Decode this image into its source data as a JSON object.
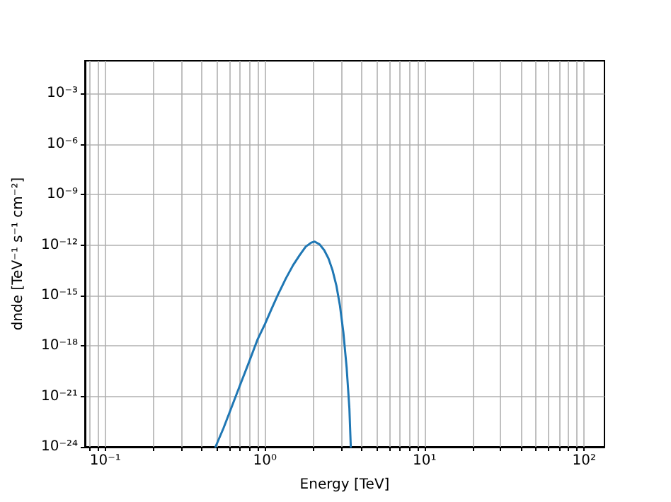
{
  "chart_data": {
    "type": "line",
    "xlabel": "Energy [TeV]",
    "ylabel": "dnde [TeV⁻¹ s⁻¹ cm⁻²]",
    "x": [
      0.49,
      0.55,
      0.62,
      0.7,
      0.8,
      0.9,
      1.0,
      1.1,
      1.2,
      1.35,
      1.5,
      1.65,
      1.8,
      1.95,
      2.05,
      2.2,
      2.35,
      2.5,
      2.65,
      2.8,
      2.95,
      3.1,
      3.25,
      3.38,
      3.45
    ],
    "series": [
      {
        "color": "#1f77b4",
        "values": [
          1e-24,
          1.3e-23,
          2.5e-22,
          5e-21,
          1.3e-19,
          2.5e-18,
          2e-17,
          1.6e-16,
          1e-15,
          1e-14,
          6.3e-14,
          2.5e-13,
          8e-13,
          1.4e-12,
          1.6e-12,
          1.1e-12,
          5e-13,
          1.6e-13,
          3.2e-14,
          4e-15,
          2.5e-16,
          6.3e-18,
          5e-20,
          2e-22,
          1e-24
        ]
      }
    ],
    "xlim": [
      0.0745,
      134
    ],
    "ylim": [
      1e-24,
      0.09
    ],
    "xticks": [
      {
        "value": 0.08,
        "label": null
      },
      {
        "value": 0.09,
        "label": null
      },
      {
        "value": 0.1,
        "label": "10⁻¹"
      },
      {
        "value": 0.2,
        "label": null
      },
      {
        "value": 0.3,
        "label": null
      },
      {
        "value": 0.4,
        "label": null
      },
      {
        "value": 0.5,
        "label": null
      },
      {
        "value": 0.6,
        "label": null
      },
      {
        "value": 0.7,
        "label": null
      },
      {
        "value": 0.8,
        "label": null
      },
      {
        "value": 0.9,
        "label": null
      },
      {
        "value": 1,
        "label": "10⁰"
      },
      {
        "value": 2,
        "label": null
      },
      {
        "value": 3,
        "label": null
      },
      {
        "value": 4,
        "label": null
      },
      {
        "value": 5,
        "label": null
      },
      {
        "value": 6,
        "label": null
      },
      {
        "value": 7,
        "label": null
      },
      {
        "value": 8,
        "label": null
      },
      {
        "value": 9,
        "label": null
      },
      {
        "value": 10,
        "label": "10¹"
      },
      {
        "value": 20,
        "label": null
      },
      {
        "value": 30,
        "label": null
      },
      {
        "value": 40,
        "label": null
      },
      {
        "value": 50,
        "label": null
      },
      {
        "value": 60,
        "label": null
      },
      {
        "value": 70,
        "label": null
      },
      {
        "value": 80,
        "label": null
      },
      {
        "value": 90,
        "label": null
      },
      {
        "value": 100,
        "label": "10²"
      }
    ],
    "yticks": [
      {
        "value": 1e-24,
        "label": "10⁻²⁴"
      },
      {
        "value": 1e-21,
        "label": "10⁻²¹"
      },
      {
        "value": 1e-18,
        "label": "10⁻¹⁸"
      },
      {
        "value": 1e-15,
        "label": "10⁻¹⁵"
      },
      {
        "value": 1e-12,
        "label": "10⁻¹²"
      },
      {
        "value": 1e-09,
        "label": "10⁻⁹"
      },
      {
        "value": 1e-06,
        "label": "10⁻⁶"
      },
      {
        "value": 0.001,
        "label": "10⁻³"
      }
    ],
    "log": "xy",
    "grid": true,
    "marker": "none",
    "line_style": "solid"
  }
}
